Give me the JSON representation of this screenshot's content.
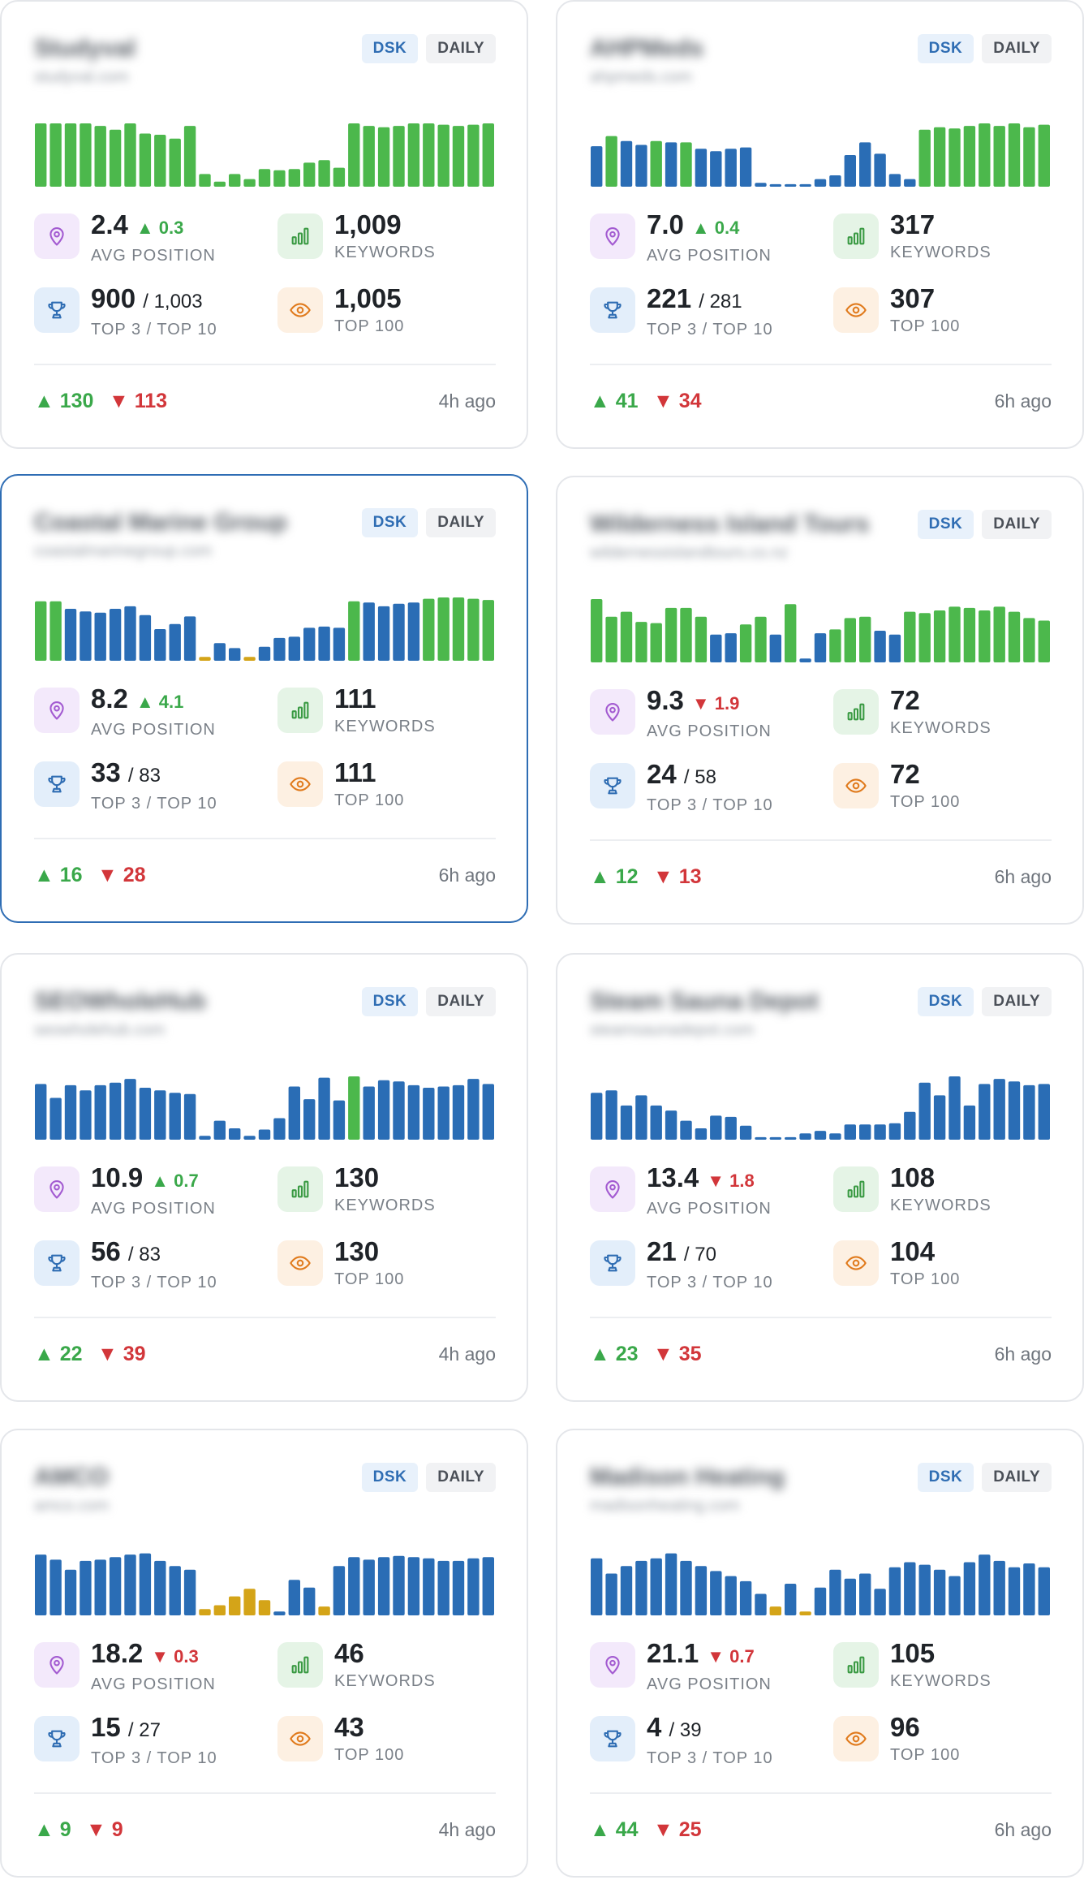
{
  "colors": {
    "green": "#4cb84c",
    "blue": "#2a6db5",
    "yellow": "#d4a418",
    "up": "#3aa84a",
    "down": "#d2363a"
  },
  "labels": {
    "avg_position": "AVG POSITION",
    "keywords": "KEYWORDS",
    "top3_top10": "TOP 3 / TOP 10",
    "top100": "TOP 100",
    "device": "DSK",
    "frequency": "DAILY"
  },
  "projects": [
    {
      "name": "Studyval",
      "domain": "studyval.com",
      "avg": "2.4",
      "avg_delta": "▲ 0.3",
      "avg_dir": "up",
      "keywords": "1,009",
      "top3": "900",
      "top10": "/ 1,003",
      "top100": "1,005",
      "gain": "▲ 130",
      "loss": "▼ 113",
      "updated": "4h ago",
      "spark": [
        [
          1,
          "g"
        ],
        [
          1,
          "g"
        ],
        [
          1,
          "g"
        ],
        [
          1,
          "g"
        ],
        [
          0.96,
          "g"
        ],
        [
          0.9,
          "g"
        ],
        [
          1,
          "g"
        ],
        [
          0.84,
          "g"
        ],
        [
          0.82,
          "g"
        ],
        [
          0.76,
          "g"
        ],
        [
          0.96,
          "g"
        ],
        [
          0.2,
          "g"
        ],
        [
          0.08,
          "g"
        ],
        [
          0.2,
          "g"
        ],
        [
          0.12,
          "g"
        ],
        [
          0.28,
          "g"
        ],
        [
          0.26,
          "g"
        ],
        [
          0.28,
          "g"
        ],
        [
          0.38,
          "g"
        ],
        [
          0.42,
          "g"
        ],
        [
          0.3,
          "g"
        ],
        [
          1,
          "g"
        ],
        [
          0.96,
          "g"
        ],
        [
          0.94,
          "g"
        ],
        [
          0.96,
          "g"
        ],
        [
          1,
          "g"
        ],
        [
          1,
          "g"
        ],
        [
          0.98,
          "g"
        ],
        [
          0.96,
          "g"
        ],
        [
          0.98,
          "g"
        ],
        [
          1,
          "g"
        ]
      ]
    },
    {
      "name": "AHPMeds",
      "domain": "ahpmeds.com",
      "avg": "7.0",
      "avg_delta": "▲ 0.4",
      "avg_dir": "up",
      "keywords": "317",
      "top3": "221",
      "top10": "/ 281",
      "top100": "307",
      "gain": "▲ 41",
      "loss": "▼ 34",
      "updated": "6h ago",
      "spark": [
        [
          0.64,
          "b"
        ],
        [
          0.8,
          "g"
        ],
        [
          0.72,
          "b"
        ],
        [
          0.66,
          "b"
        ],
        [
          0.72,
          "g"
        ],
        [
          0.7,
          "b"
        ],
        [
          0.7,
          "g"
        ],
        [
          0.6,
          "b"
        ],
        [
          0.56,
          "b"
        ],
        [
          0.6,
          "b"
        ],
        [
          0.62,
          "b"
        ],
        [
          0.06,
          "b"
        ],
        [
          0.04,
          "b"
        ],
        [
          0.04,
          "b"
        ],
        [
          0.04,
          "b"
        ],
        [
          0.12,
          "b"
        ],
        [
          0.18,
          "b"
        ],
        [
          0.5,
          "b"
        ],
        [
          0.7,
          "b"
        ],
        [
          0.52,
          "b"
        ],
        [
          0.2,
          "b"
        ],
        [
          0.12,
          "b"
        ],
        [
          0.9,
          "g"
        ],
        [
          0.94,
          "g"
        ],
        [
          0.92,
          "g"
        ],
        [
          0.96,
          "g"
        ],
        [
          1,
          "g"
        ],
        [
          0.96,
          "g"
        ],
        [
          1,
          "g"
        ],
        [
          0.94,
          "g"
        ],
        [
          0.98,
          "g"
        ]
      ]
    },
    {
      "name": "Coastal Marine Group",
      "domain": "coastalmarinegroup.com",
      "avg": "8.2",
      "avg_delta": "▲ 4.1",
      "avg_dir": "up",
      "keywords": "111",
      "top3": "33",
      "top10": "/ 83",
      "top100": "111",
      "gain": "▲ 16",
      "loss": "▼ 28",
      "updated": "6h ago",
      "spark": [
        [
          0.94,
          "g"
        ],
        [
          0.94,
          "g"
        ],
        [
          0.82,
          "b"
        ],
        [
          0.78,
          "b"
        ],
        [
          0.76,
          "b"
        ],
        [
          0.82,
          "b"
        ],
        [
          0.86,
          "b"
        ],
        [
          0.72,
          "b"
        ],
        [
          0.5,
          "b"
        ],
        [
          0.58,
          "b"
        ],
        [
          0.7,
          "b"
        ],
        [
          0.06,
          "y"
        ],
        [
          0.28,
          "b"
        ],
        [
          0.2,
          "b"
        ],
        [
          0.06,
          "y"
        ],
        [
          0.22,
          "b"
        ],
        [
          0.36,
          "b"
        ],
        [
          0.38,
          "b"
        ],
        [
          0.52,
          "b"
        ],
        [
          0.54,
          "b"
        ],
        [
          0.52,
          "b"
        ],
        [
          0.94,
          "g"
        ],
        [
          0.92,
          "b"
        ],
        [
          0.86,
          "b"
        ],
        [
          0.9,
          "b"
        ],
        [
          0.92,
          "b"
        ],
        [
          0.98,
          "g"
        ],
        [
          1,
          "g"
        ],
        [
          1,
          "g"
        ],
        [
          0.98,
          "g"
        ],
        [
          0.96,
          "g"
        ]
      ]
    },
    {
      "name": "Wilderness Island Tours",
      "domain": "wildernessislandtours.co.nz",
      "avg": "9.3",
      "avg_delta": "▼ 1.9",
      "avg_dir": "down",
      "keywords": "72",
      "top3": "24",
      "top10": "/ 58",
      "top100": "72",
      "gain": "▲ 12",
      "loss": "▼ 13",
      "updated": "6h ago",
      "spark": [
        [
          1,
          "g"
        ],
        [
          0.72,
          "g"
        ],
        [
          0.8,
          "g"
        ],
        [
          0.64,
          "g"
        ],
        [
          0.62,
          "g"
        ],
        [
          0.86,
          "g"
        ],
        [
          0.86,
          "g"
        ],
        [
          0.72,
          "g"
        ],
        [
          0.44,
          "b"
        ],
        [
          0.46,
          "b"
        ],
        [
          0.6,
          "g"
        ],
        [
          0.72,
          "g"
        ],
        [
          0.44,
          "b"
        ],
        [
          0.92,
          "g"
        ],
        [
          0.06,
          "b"
        ],
        [
          0.46,
          "b"
        ],
        [
          0.52,
          "g"
        ],
        [
          0.7,
          "g"
        ],
        [
          0.72,
          "g"
        ],
        [
          0.5,
          "b"
        ],
        [
          0.44,
          "b"
        ],
        [
          0.8,
          "g"
        ],
        [
          0.78,
          "g"
        ],
        [
          0.82,
          "g"
        ],
        [
          0.88,
          "g"
        ],
        [
          0.86,
          "g"
        ],
        [
          0.82,
          "g"
        ],
        [
          0.88,
          "g"
        ],
        [
          0.8,
          "g"
        ],
        [
          0.7,
          "g"
        ],
        [
          0.66,
          "g"
        ]
      ]
    },
    {
      "name": "SEOWholeHub",
      "domain": "seowholehub.com",
      "avg": "10.9",
      "avg_delta": "▲ 0.7",
      "avg_dir": "up",
      "keywords": "130",
      "top3": "56",
      "top10": "/ 83",
      "top100": "130",
      "gain": "▲ 22",
      "loss": "▼ 39",
      "updated": "4h ago",
      "spark": [
        [
          0.88,
          "b"
        ],
        [
          0.66,
          "b"
        ],
        [
          0.86,
          "b"
        ],
        [
          0.78,
          "b"
        ],
        [
          0.86,
          "b"
        ],
        [
          0.9,
          "b"
        ],
        [
          0.96,
          "b"
        ],
        [
          0.82,
          "b"
        ],
        [
          0.78,
          "b"
        ],
        [
          0.74,
          "b"
        ],
        [
          0.72,
          "b"
        ],
        [
          0.06,
          "b"
        ],
        [
          0.3,
          "b"
        ],
        [
          0.18,
          "b"
        ],
        [
          0.06,
          "b"
        ],
        [
          0.16,
          "b"
        ],
        [
          0.34,
          "b"
        ],
        [
          0.84,
          "b"
        ],
        [
          0.64,
          "b"
        ],
        [
          0.98,
          "b"
        ],
        [
          0.62,
          "b"
        ],
        [
          1,
          "g"
        ],
        [
          0.84,
          "b"
        ],
        [
          0.94,
          "b"
        ],
        [
          0.92,
          "b"
        ],
        [
          0.86,
          "b"
        ],
        [
          0.82,
          "b"
        ],
        [
          0.84,
          "b"
        ],
        [
          0.86,
          "b"
        ],
        [
          0.96,
          "b"
        ],
        [
          0.88,
          "b"
        ]
      ]
    },
    {
      "name": "Steam Sauna Depot",
      "domain": "steamsaunadepot.com",
      "avg": "13.4",
      "avg_delta": "▼ 1.8",
      "avg_dir": "down",
      "keywords": "108",
      "top3": "21",
      "top10": "/ 70",
      "top100": "104",
      "gain": "▲ 23",
      "loss": "▼ 35",
      "updated": "6h ago",
      "spark": [
        [
          0.74,
          "b"
        ],
        [
          0.78,
          "b"
        ],
        [
          0.54,
          "b"
        ],
        [
          0.7,
          "b"
        ],
        [
          0.54,
          "b"
        ],
        [
          0.46,
          "b"
        ],
        [
          0.3,
          "b"
        ],
        [
          0.18,
          "b"
        ],
        [
          0.38,
          "b"
        ],
        [
          0.36,
          "b"
        ],
        [
          0.22,
          "b"
        ],
        [
          0.04,
          "b"
        ],
        [
          0.04,
          "b"
        ],
        [
          0.04,
          "b"
        ],
        [
          0.1,
          "b"
        ],
        [
          0.14,
          "b"
        ],
        [
          0.1,
          "b"
        ],
        [
          0.24,
          "b"
        ],
        [
          0.24,
          "b"
        ],
        [
          0.24,
          "b"
        ],
        [
          0.26,
          "b"
        ],
        [
          0.44,
          "b"
        ],
        [
          0.9,
          "b"
        ],
        [
          0.7,
          "b"
        ],
        [
          1,
          "b"
        ],
        [
          0.54,
          "b"
        ],
        [
          0.88,
          "b"
        ],
        [
          0.96,
          "b"
        ],
        [
          0.92,
          "b"
        ],
        [
          0.86,
          "b"
        ],
        [
          0.88,
          "b"
        ]
      ]
    },
    {
      "name": "AMCO",
      "domain": "amco.com",
      "avg": "18.2",
      "avg_delta": "▼ 0.3",
      "avg_dir": "down",
      "keywords": "46",
      "top3": "15",
      "top10": "/ 27",
      "top100": "43",
      "gain": "▲ 9",
      "loss": "▼ 9",
      "updated": "4h ago",
      "spark": [
        [
          0.96,
          "b"
        ],
        [
          0.88,
          "b"
        ],
        [
          0.72,
          "b"
        ],
        [
          0.86,
          "b"
        ],
        [
          0.88,
          "b"
        ],
        [
          0.92,
          "b"
        ],
        [
          0.96,
          "b"
        ],
        [
          0.98,
          "b"
        ],
        [
          0.86,
          "b"
        ],
        [
          0.78,
          "b"
        ],
        [
          0.72,
          "b"
        ],
        [
          0.1,
          "y"
        ],
        [
          0.16,
          "y"
        ],
        [
          0.3,
          "y"
        ],
        [
          0.42,
          "y"
        ],
        [
          0.24,
          "y"
        ],
        [
          0.06,
          "b"
        ],
        [
          0.56,
          "b"
        ],
        [
          0.44,
          "b"
        ],
        [
          0.14,
          "y"
        ],
        [
          0.78,
          "b"
        ],
        [
          0.92,
          "b"
        ],
        [
          0.88,
          "b"
        ],
        [
          0.92,
          "b"
        ],
        [
          0.94,
          "b"
        ],
        [
          0.92,
          "b"
        ],
        [
          0.9,
          "b"
        ],
        [
          0.86,
          "b"
        ],
        [
          0.86,
          "b"
        ],
        [
          0.9,
          "b"
        ],
        [
          0.92,
          "b"
        ]
      ]
    },
    {
      "name": "Madison Heating",
      "domain": "madisonheating.com",
      "avg": "21.1",
      "avg_delta": "▼ 0.7",
      "avg_dir": "down",
      "keywords": "105",
      "top3": "4",
      "top10": "/ 39",
      "top100": "96",
      "gain": "▲ 44",
      "loss": "▼ 25",
      "updated": "6h ago",
      "spark": [
        [
          0.9,
          "b"
        ],
        [
          0.66,
          "b"
        ],
        [
          0.78,
          "b"
        ],
        [
          0.86,
          "b"
        ],
        [
          0.9,
          "b"
        ],
        [
          0.98,
          "b"
        ],
        [
          0.86,
          "b"
        ],
        [
          0.78,
          "b"
        ],
        [
          0.7,
          "b"
        ],
        [
          0.62,
          "b"
        ],
        [
          0.54,
          "b"
        ],
        [
          0.34,
          "b"
        ],
        [
          0.14,
          "y"
        ],
        [
          0.5,
          "b"
        ],
        [
          0.06,
          "y"
        ],
        [
          0.44,
          "b"
        ],
        [
          0.72,
          "b"
        ],
        [
          0.58,
          "b"
        ],
        [
          0.66,
          "b"
        ],
        [
          0.42,
          "b"
        ],
        [
          0.76,
          "b"
        ],
        [
          0.84,
          "b"
        ],
        [
          0.8,
          "b"
        ],
        [
          0.72,
          "b"
        ],
        [
          0.62,
          "b"
        ],
        [
          0.84,
          "b"
        ],
        [
          0.96,
          "b"
        ],
        [
          0.86,
          "b"
        ],
        [
          0.76,
          "b"
        ],
        [
          0.82,
          "b"
        ],
        [
          0.76,
          "b"
        ]
      ]
    }
  ]
}
